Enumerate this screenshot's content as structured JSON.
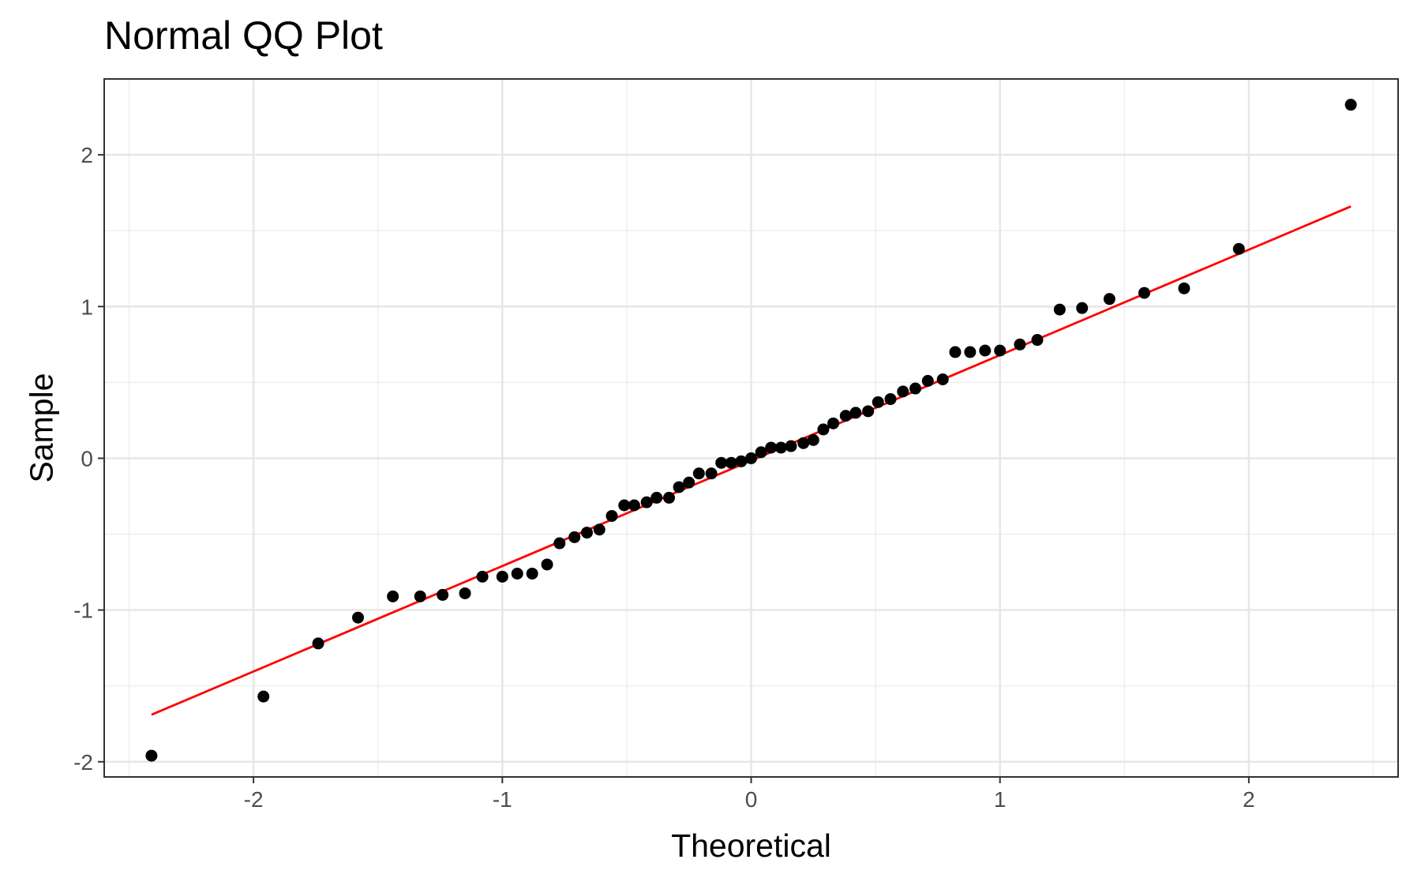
{
  "chart_data": {
    "type": "scatter",
    "title": "Normal QQ Plot",
    "xlabel": "Theoretical",
    "ylabel": "Sample",
    "xlim": [
      -2.6,
      2.6
    ],
    "ylim": [
      -2.1,
      2.5
    ],
    "x_ticks": [
      -2,
      -1,
      0,
      1,
      2
    ],
    "x_tick_labels": [
      "-2",
      "-1",
      "0",
      "1",
      "2"
    ],
    "y_ticks": [
      -2,
      -1,
      0,
      1,
      2
    ],
    "y_tick_labels": [
      "-2",
      "-1",
      "0",
      "1",
      "2"
    ],
    "grid": true,
    "legend": "none",
    "point_color": "#000000",
    "line_color": "#ff0000",
    "reference_line": {
      "x": [
        -2.41,
        2.41
      ],
      "y": [
        -1.69,
        1.66
      ]
    },
    "points": [
      {
        "x": -2.41,
        "y": -1.96
      },
      {
        "x": -1.96,
        "y": -1.57
      },
      {
        "x": -1.74,
        "y": -1.22
      },
      {
        "x": -1.58,
        "y": -1.05
      },
      {
        "x": -1.44,
        "y": -0.91
      },
      {
        "x": -1.33,
        "y": -0.91
      },
      {
        "x": -1.24,
        "y": -0.9
      },
      {
        "x": -1.15,
        "y": -0.89
      },
      {
        "x": -1.08,
        "y": -0.78
      },
      {
        "x": -1.0,
        "y": -0.78
      },
      {
        "x": -0.94,
        "y": -0.76
      },
      {
        "x": -0.88,
        "y": -0.76
      },
      {
        "x": -0.82,
        "y": -0.7
      },
      {
        "x": -0.77,
        "y": -0.56
      },
      {
        "x": -0.71,
        "y": -0.52
      },
      {
        "x": -0.66,
        "y": -0.49
      },
      {
        "x": -0.61,
        "y": -0.47
      },
      {
        "x": -0.56,
        "y": -0.38
      },
      {
        "x": -0.51,
        "y": -0.31
      },
      {
        "x": -0.47,
        "y": -0.31
      },
      {
        "x": -0.42,
        "y": -0.29
      },
      {
        "x": -0.38,
        "y": -0.26
      },
      {
        "x": -0.33,
        "y": -0.26
      },
      {
        "x": -0.29,
        "y": -0.19
      },
      {
        "x": -0.25,
        "y": -0.16
      },
      {
        "x": -0.21,
        "y": -0.1
      },
      {
        "x": -0.16,
        "y": -0.1
      },
      {
        "x": -0.12,
        "y": -0.03
      },
      {
        "x": -0.08,
        "y": -0.03
      },
      {
        "x": -0.04,
        "y": -0.02
      },
      {
        "x": 0.0,
        "y": 0.0
      },
      {
        "x": 0.04,
        "y": 0.04
      },
      {
        "x": 0.08,
        "y": 0.07
      },
      {
        "x": 0.12,
        "y": 0.07
      },
      {
        "x": 0.16,
        "y": 0.08
      },
      {
        "x": 0.21,
        "y": 0.1
      },
      {
        "x": 0.25,
        "y": 0.12
      },
      {
        "x": 0.29,
        "y": 0.19
      },
      {
        "x": 0.33,
        "y": 0.23
      },
      {
        "x": 0.38,
        "y": 0.28
      },
      {
        "x": 0.42,
        "y": 0.3
      },
      {
        "x": 0.47,
        "y": 0.31
      },
      {
        "x": 0.51,
        "y": 0.37
      },
      {
        "x": 0.56,
        "y": 0.39
      },
      {
        "x": 0.61,
        "y": 0.44
      },
      {
        "x": 0.66,
        "y": 0.46
      },
      {
        "x": 0.71,
        "y": 0.51
      },
      {
        "x": 0.77,
        "y": 0.52
      },
      {
        "x": 0.82,
        "y": 0.7
      },
      {
        "x": 0.88,
        "y": 0.7
      },
      {
        "x": 0.94,
        "y": 0.71
      },
      {
        "x": 1.0,
        "y": 0.71
      },
      {
        "x": 1.08,
        "y": 0.75
      },
      {
        "x": 1.15,
        "y": 0.78
      },
      {
        "x": 1.24,
        "y": 0.98
      },
      {
        "x": 1.33,
        "y": 0.99
      },
      {
        "x": 1.44,
        "y": 1.05
      },
      {
        "x": 1.58,
        "y": 1.09
      },
      {
        "x": 1.74,
        "y": 1.12
      },
      {
        "x": 1.96,
        "y": 1.38
      },
      {
        "x": 2.41,
        "y": 2.33
      }
    ]
  }
}
